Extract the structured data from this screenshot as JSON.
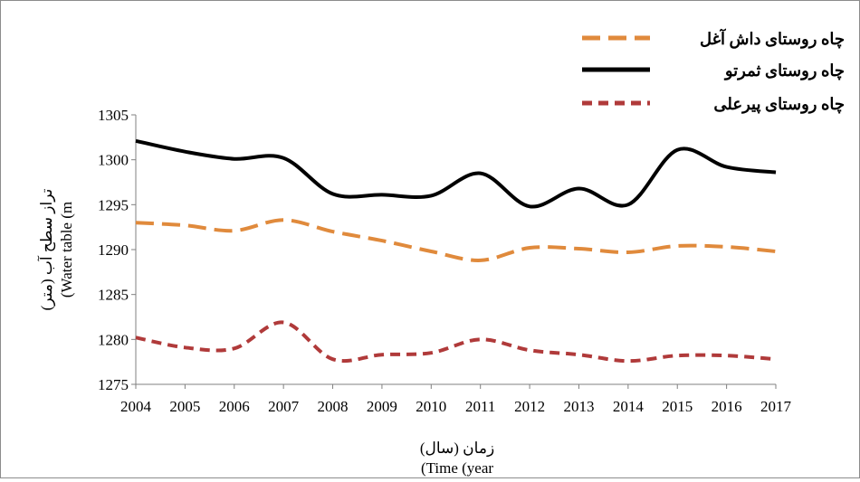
{
  "chart_data": {
    "type": "line",
    "categories": [
      "2004",
      "2005",
      "2006",
      "2007",
      "2008",
      "2009",
      "2010",
      "2011",
      "2012",
      "2013",
      "2014",
      "2015",
      "2016",
      "2017"
    ],
    "ylim": [
      1275,
      1305
    ],
    "yticks": [
      "1275",
      "1280",
      "1285",
      "1290",
      "1295",
      "1300",
      "1305"
    ],
    "xlabel_fa": "زمان (سال)",
    "xlabel_en": "(Time (year",
    "ylabel_fa": "تراز سطح آب (متر)",
    "ylabel_en": "(Water table (m",
    "legend_position": "top-right",
    "series": [
      {
        "name": "چاه روستای داش آغل",
        "style": "long-dash",
        "color": "#e08a3c",
        "values": [
          1293.0,
          1292.7,
          1292.1,
          1293.3,
          1292.0,
          1291.0,
          1289.8,
          1288.8,
          1290.2,
          1290.1,
          1289.7,
          1290.4,
          1290.3,
          1289.8
        ]
      },
      {
        "name": "چاه روستای ثمرتو",
        "style": "solid",
        "color": "#000000",
        "values": [
          1302.1,
          1300.9,
          1300.1,
          1300.2,
          1296.2,
          1296.1,
          1296.0,
          1298.5,
          1294.8,
          1296.8,
          1295.0,
          1301.1,
          1299.2,
          1298.6
        ]
      },
      {
        "name": "چاه روستای پیرعلی",
        "style": "short-dash",
        "color": "#b03a3a",
        "values": [
          1280.2,
          1279.1,
          1279.0,
          1281.9,
          1277.8,
          1278.3,
          1278.5,
          1280.0,
          1278.8,
          1278.3,
          1277.6,
          1278.2,
          1278.2,
          1277.8
        ]
      }
    ]
  }
}
